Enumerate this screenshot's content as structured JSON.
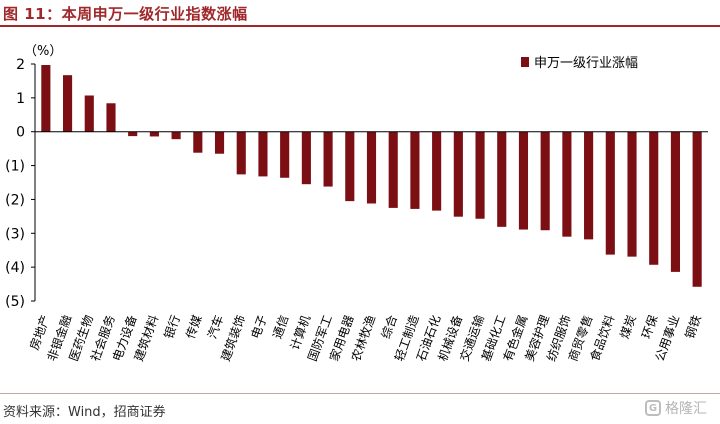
{
  "figure_title": "图 11：本周申万一级行业指数涨幅",
  "source_note": "资料来源：Wind，招商证券",
  "watermark": {
    "text": "格隆汇",
    "logo_glyph": "G"
  },
  "colors": {
    "bar": "#7b0f13",
    "title": "#a0282a",
    "axis": "#000000"
  },
  "chart_data": {
    "type": "bar",
    "unit_label": "（%）",
    "ylim": [
      -5,
      2
    ],
    "yticks": [
      2,
      1,
      0,
      -1,
      -2,
      -3,
      -4,
      -5
    ],
    "ytick_labels": [
      "2",
      "1",
      "0",
      "(1)",
      "(2)",
      "(3)",
      "(4)",
      "(5)"
    ],
    "legend": {
      "label": "申万一级行业涨幅",
      "position": "top-right"
    },
    "grid": false,
    "categories": [
      "房地产",
      "非银金融",
      "医药生物",
      "社会服务",
      "电力设备",
      "建筑材料",
      "银行",
      "传媒",
      "汽车",
      "建筑装饰",
      "电子",
      "通信",
      "计算机",
      "国防军工",
      "家用电器",
      "农林牧渔",
      "综合",
      "轻工制造",
      "石油石化",
      "机械设备",
      "交通运输",
      "基础化工",
      "有色金属",
      "美容护理",
      "纺织服饰",
      "商贸零售",
      "食品饮料",
      "煤炭",
      "环保",
      "公用事业",
      "钢铁"
    ],
    "series": [
      {
        "name": "申万一级行业涨幅",
        "values": [
          1.97,
          1.67,
          1.07,
          0.84,
          -0.13,
          -0.14,
          -0.22,
          -0.62,
          -0.65,
          -1.26,
          -1.32,
          -1.36,
          -1.55,
          -1.62,
          -2.05,
          -2.12,
          -2.25,
          -2.28,
          -2.33,
          -2.51,
          -2.57,
          -2.81,
          -2.89,
          -2.91,
          -3.1,
          -3.18,
          -3.63,
          -3.69,
          -3.93,
          -4.14,
          -4.58
        ]
      }
    ]
  }
}
